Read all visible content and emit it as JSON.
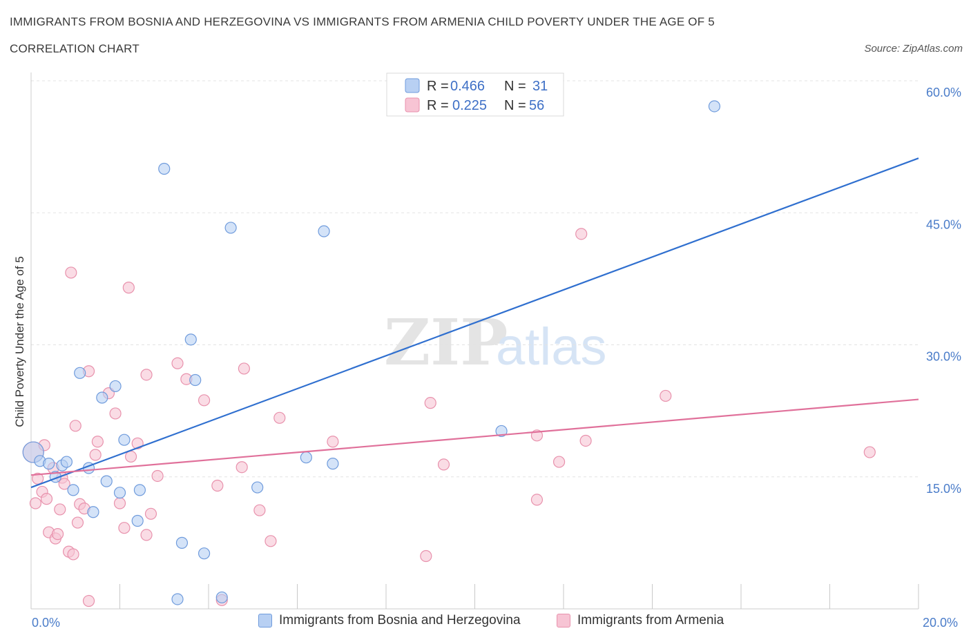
{
  "header": {
    "title": "IMMIGRANTS FROM BOSNIA AND HERZEGOVINA VS IMMIGRANTS FROM ARMENIA CHILD POVERTY UNDER THE AGE OF 5",
    "subtitle": "CORRELATION CHART",
    "source": "Source: ZipAtlas.com"
  },
  "legend": {
    "rows": [
      {
        "r_label": "R = ",
        "r_value": "0.466",
        "n_label": "N = ",
        "n_value": "31"
      },
      {
        "r_label": "R = ",
        "r_value": "0.225",
        "n_label": "N = ",
        "n_value": "56"
      }
    ]
  },
  "watermark": {
    "zip": "ZIP",
    "atlas": "atlas"
  },
  "colors": {
    "blue_fill": "#b8d0f3",
    "blue_stroke": "#6f9bdc",
    "blue_line": "#2f6fcf",
    "pink_fill": "#f7c4d4",
    "pink_stroke": "#e891ac",
    "pink_line": "#e0709a",
    "grid": "#e3e3e3",
    "tick_text": "#4a7cc9"
  },
  "chart_data": {
    "type": "scatter",
    "title": "IMMIGRANTS FROM BOSNIA AND HERZEGOVINA VS IMMIGRANTS FROM ARMENIA CHILD POVERTY UNDER THE AGE OF 5",
    "xlabel": "",
    "ylabel": "Child Poverty Under the Age of 5",
    "xlim": [
      0,
      20
    ],
    "ylim": [
      0,
      60
    ],
    "x_tick_labels": [
      "0.0%",
      "20.0%"
    ],
    "y_ticks": [
      15,
      30,
      45,
      60
    ],
    "y_tick_labels": [
      "15.0%",
      "30.0%",
      "45.0%",
      "60.0%"
    ],
    "grid": true,
    "legend_position": "top-center",
    "series": [
      {
        "name": "Immigrants from Bosnia and Herzegovina",
        "color": "blue",
        "R": 0.466,
        "N": 31,
        "trend": {
          "x": [
            0,
            20
          ],
          "y": [
            13.8,
            51.2
          ]
        },
        "points": [
          {
            "x": 0.05,
            "y": 17.8
          },
          {
            "x": 0.2,
            "y": 16.8
          },
          {
            "x": 0.4,
            "y": 16.5
          },
          {
            "x": 0.55,
            "y": 15.0
          },
          {
            "x": 0.7,
            "y": 16.3
          },
          {
            "x": 0.8,
            "y": 16.7
          },
          {
            "x": 0.95,
            "y": 13.5
          },
          {
            "x": 1.1,
            "y": 26.8
          },
          {
            "x": 1.3,
            "y": 16.0
          },
          {
            "x": 1.4,
            "y": 11.0
          },
          {
            "x": 1.6,
            "y": 24.0
          },
          {
            "x": 1.9,
            "y": 25.3
          },
          {
            "x": 1.7,
            "y": 14.5
          },
          {
            "x": 2.0,
            "y": 13.2
          },
          {
            "x": 2.1,
            "y": 19.2
          },
          {
            "x": 2.4,
            "y": 10.0
          },
          {
            "x": 2.45,
            "y": 13.5
          },
          {
            "x": 3.0,
            "y": 50.0
          },
          {
            "x": 3.3,
            "y": 1.1
          },
          {
            "x": 3.4,
            "y": 7.5
          },
          {
            "x": 3.6,
            "y": 30.6
          },
          {
            "x": 3.7,
            "y": 26.0
          },
          {
            "x": 3.9,
            "y": 6.3
          },
          {
            "x": 4.3,
            "y": 1.3
          },
          {
            "x": 4.5,
            "y": 43.3
          },
          {
            "x": 5.1,
            "y": 13.8
          },
          {
            "x": 6.2,
            "y": 17.2
          },
          {
            "x": 6.6,
            "y": 42.9
          },
          {
            "x": 6.8,
            "y": 16.5
          },
          {
            "x": 10.6,
            "y": 20.2
          },
          {
            "x": 15.4,
            "y": 57.1
          }
        ]
      },
      {
        "name": "Immigrants from Armenia",
        "color": "pink",
        "R": 0.225,
        "N": 56,
        "trend": {
          "x": [
            0,
            20
          ],
          "y": [
            15.2,
            23.8
          ]
        },
        "points": [
          {
            "x": 0.05,
            "y": 17.8
          },
          {
            "x": 0.1,
            "y": 12.0
          },
          {
            "x": 0.15,
            "y": 14.8
          },
          {
            "x": 0.25,
            "y": 13.3
          },
          {
            "x": 0.3,
            "y": 18.6
          },
          {
            "x": 0.35,
            "y": 12.5
          },
          {
            "x": 0.4,
            "y": 8.7
          },
          {
            "x": 0.5,
            "y": 16.0
          },
          {
            "x": 0.55,
            "y": 8.0
          },
          {
            "x": 0.6,
            "y": 8.5
          },
          {
            "x": 0.65,
            "y": 11.3
          },
          {
            "x": 0.7,
            "y": 14.9
          },
          {
            "x": 0.75,
            "y": 14.2
          },
          {
            "x": 0.85,
            "y": 6.5
          },
          {
            "x": 0.9,
            "y": 38.2
          },
          {
            "x": 0.95,
            "y": 6.2
          },
          {
            "x": 1.0,
            "y": 20.8
          },
          {
            "x": 1.05,
            "y": 9.8
          },
          {
            "x": 1.1,
            "y": 11.9
          },
          {
            "x": 1.2,
            "y": 11.4
          },
          {
            "x": 1.3,
            "y": 27.0
          },
          {
            "x": 1.3,
            "y": 0.9
          },
          {
            "x": 1.45,
            "y": 17.5
          },
          {
            "x": 1.5,
            "y": 19.0
          },
          {
            "x": 1.75,
            "y": 24.5
          },
          {
            "x": 1.9,
            "y": 22.2
          },
          {
            "x": 2.0,
            "y": 12.0
          },
          {
            "x": 2.1,
            "y": 9.2
          },
          {
            "x": 2.2,
            "y": 36.5
          },
          {
            "x": 2.25,
            "y": 17.3
          },
          {
            "x": 2.4,
            "y": 18.8
          },
          {
            "x": 2.6,
            "y": 26.6
          },
          {
            "x": 2.6,
            "y": 8.4
          },
          {
            "x": 2.7,
            "y": 10.8
          },
          {
            "x": 2.85,
            "y": 15.1
          },
          {
            "x": 3.3,
            "y": 27.9
          },
          {
            "x": 3.5,
            "y": 26.1
          },
          {
            "x": 3.9,
            "y": 23.7
          },
          {
            "x": 4.2,
            "y": 14.0
          },
          {
            "x": 4.3,
            "y": 1.0
          },
          {
            "x": 4.75,
            "y": 16.1
          },
          {
            "x": 4.8,
            "y": 27.3
          },
          {
            "x": 5.15,
            "y": 11.2
          },
          {
            "x": 5.4,
            "y": 7.7
          },
          {
            "x": 5.6,
            "y": 21.7
          },
          {
            "x": 6.8,
            "y": 19.0
          },
          {
            "x": 8.9,
            "y": 6.0
          },
          {
            "x": 9.0,
            "y": 23.4
          },
          {
            "x": 9.3,
            "y": 16.4
          },
          {
            "x": 11.4,
            "y": 12.4
          },
          {
            "x": 11.4,
            "y": 19.7
          },
          {
            "x": 11.9,
            "y": 16.7
          },
          {
            "x": 12.4,
            "y": 42.6
          },
          {
            "x": 12.5,
            "y": 19.1
          },
          {
            "x": 14.3,
            "y": 24.2
          },
          {
            "x": 18.9,
            "y": 17.8
          }
        ]
      }
    ]
  }
}
